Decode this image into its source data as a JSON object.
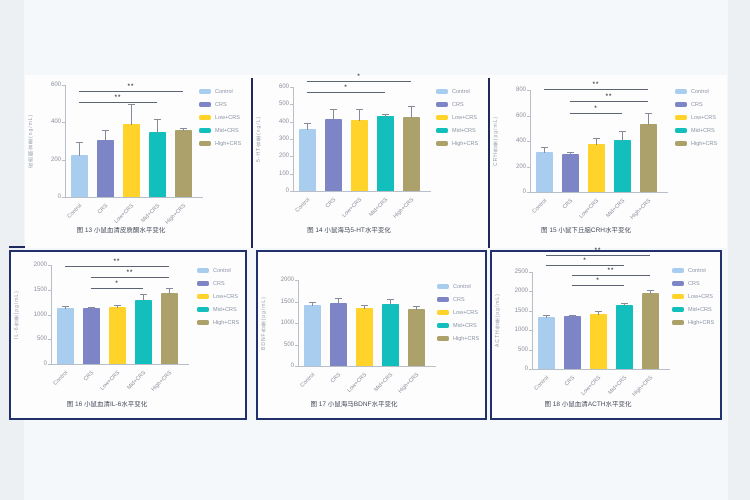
{
  "page": {
    "background": "#f5f8fb",
    "panel_border_color": "#22306b",
    "description_groups": [
      "Control",
      "CRS",
      "Low+CRS",
      "Mid+CRS",
      "High+CRS"
    ]
  },
  "legend": {
    "position": "right",
    "items": [
      {
        "label": "Control",
        "color": "#a9cdef"
      },
      {
        "label": "CRS",
        "color": "#7e85c7"
      },
      {
        "label": "Low+CRS",
        "color": "#ffd32a"
      },
      {
        "label": "Mid+CRS",
        "color": "#12bfbc"
      },
      {
        "label": "High+CRS",
        "color": "#aca06b"
      }
    ]
  },
  "chart_data": [
    {
      "type": "bar",
      "title": "图 13 小鼠血清皮质酮水平变化",
      "ylabel": "皮质酮含量(ng/mL)",
      "categories": [
        "Control",
        "CRS",
        "Low+CRS",
        "Mid+CRS",
        "High+CRS"
      ],
      "values": [
        225,
        305,
        390,
        350,
        360
      ],
      "errors": [
        70,
        55,
        110,
        70,
        10
      ],
      "ylim": [
        0,
        600
      ],
      "yticks": [
        600,
        400,
        200,
        0
      ],
      "significance": [
        {
          "from": 0,
          "to": 4,
          "label": "**"
        },
        {
          "from": 0,
          "to": 3,
          "label": "**"
        }
      ],
      "legend_position": "right"
    },
    {
      "type": "bar",
      "title": "图 14 小鼠海马5-HT水平变化",
      "ylabel": "5-HT含量(ng/L)",
      "categories": [
        "Control",
        "CRS",
        "Low+CRS",
        "Mid+CRS",
        "High+CRS"
      ],
      "values": [
        360,
        415,
        412,
        430,
        428
      ],
      "errors": [
        35,
        60,
        60,
        15,
        65
      ],
      "ylim": [
        0,
        600
      ],
      "yticks": [
        600,
        500,
        400,
        300,
        200,
        100,
        0
      ],
      "significance": [
        {
          "from": 0,
          "to": 4,
          "label": "*"
        },
        {
          "from": 0,
          "to": 3,
          "label": "*"
        }
      ],
      "legend_position": "right"
    },
    {
      "type": "bar",
      "title": "图 15 小鼠下丘脑CRH水平变化",
      "ylabel": "CRH含量(pg/mL)",
      "categories": [
        "Control",
        "CRS",
        "Low+CRS",
        "Mid+CRS",
        "High+CRS"
      ],
      "values": [
        310,
        295,
        380,
        405,
        530
      ],
      "errors": [
        40,
        15,
        45,
        70,
        90
      ],
      "ylim": [
        0,
        800
      ],
      "yticks": [
        800,
        600,
        400,
        200,
        0
      ],
      "significance": [
        {
          "from": 0,
          "to": 4,
          "label": "**"
        },
        {
          "from": 1,
          "to": 4,
          "label": "**"
        },
        {
          "from": 1,
          "to": 3,
          "label": "*"
        }
      ],
      "legend_position": "right"
    },
    {
      "type": "bar",
      "title": "图 16 小鼠血清IL-6水平变化",
      "ylabel": "IL-6含量(pg/mL)",
      "categories": [
        "Control",
        "CRS",
        "Low+CRS",
        "Mid+CRS",
        "High+CRS"
      ],
      "values": [
        1135,
        1130,
        1155,
        1290,
        1430
      ],
      "errors": [
        30,
        30,
        35,
        120,
        110
      ],
      "ylim": [
        0,
        2000
      ],
      "yticks": [
        2000,
        1500,
        1000,
        500,
        0
      ],
      "significance": [
        {
          "from": 0,
          "to": 4,
          "label": "**"
        },
        {
          "from": 1,
          "to": 4,
          "label": "**"
        },
        {
          "from": 1,
          "to": 3,
          "label": "*"
        }
      ],
      "legend_position": "right"
    },
    {
      "type": "bar",
      "title": "图 17 小鼠海马BDNF水平变化",
      "ylabel": "BDNF含量(pg/mL)",
      "categories": [
        "Control",
        "CRS",
        "Low+CRS",
        "Mid+CRS",
        "High+CRS"
      ],
      "values": [
        1420,
        1455,
        1340,
        1440,
        1330
      ],
      "errors": [
        60,
        120,
        90,
        110,
        60
      ],
      "ylim": [
        0,
        2000
      ],
      "yticks": [
        2000,
        1500,
        1000,
        500,
        0
      ],
      "significance": [],
      "legend_position": "right"
    },
    {
      "type": "bar",
      "title": "图 18 小鼠血清ACTH水平变化",
      "ylabel": "ACTH含量(pg/mL)",
      "categories": [
        "Control",
        "CRS",
        "Low+CRS",
        "Mid+CRS",
        "High+CRS"
      ],
      "values": [
        1340,
        1355,
        1420,
        1640,
        1965
      ],
      "errors": [
        50,
        50,
        70,
        60,
        70
      ],
      "ylim": [
        0,
        2500
      ],
      "yticks": [
        2500,
        2000,
        1500,
        1000,
        500,
        0
      ],
      "significance": [
        {
          "from": 0,
          "to": 4,
          "label": "**"
        },
        {
          "from": 0,
          "to": 3,
          "label": "*"
        },
        {
          "from": 1,
          "to": 4,
          "label": "**"
        },
        {
          "from": 1,
          "to": 3,
          "label": "*"
        }
      ],
      "legend_position": "right"
    }
  ]
}
